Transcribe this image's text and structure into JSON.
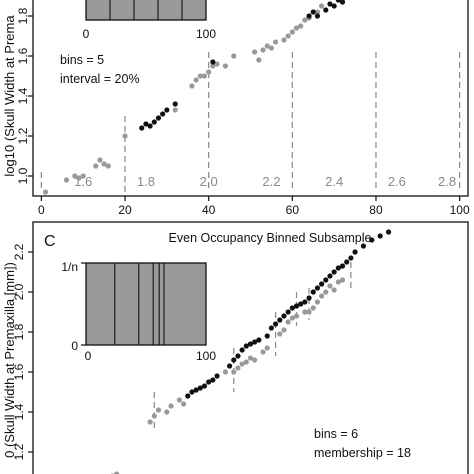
{
  "chart_data": [
    {
      "panel": "top",
      "type": "scatter",
      "title": "",
      "ylabel": "log10 (Skull Width at Prema",
      "xlim": [
        -2,
        102
      ],
      "ylim": [
        0.9,
        1.9
      ],
      "xticks": [
        "0",
        "20",
        "40",
        "60",
        "80",
        "100"
      ],
      "yticks": [
        "1.0",
        "1.2",
        "1.4",
        "1.6",
        "1.8"
      ],
      "grid": false,
      "bin_boundaries_x": [
        0,
        20,
        40,
        60,
        80,
        100
      ],
      "bin_labels": [
        {
          "x": 10,
          "label": "1.6"
        },
        {
          "x": 25,
          "label": "1.8"
        },
        {
          "x": 40,
          "label": "2.0"
        },
        {
          "x": 55,
          "label": "2.2"
        },
        {
          "x": 70,
          "label": "2.4"
        },
        {
          "x": 85,
          "label": "2.6"
        },
        {
          "x": 97,
          "label": "2.8"
        }
      ],
      "annotations": [
        "bins = 5",
        "interval = 20%"
      ],
      "inset": {
        "xticks": [
          "0",
          "100"
        ],
        "dividers": [
          20,
          40,
          60,
          80
        ]
      },
      "series": [
        {
          "color": "#999999",
          "points": [
            [
              1,
              0.92
            ],
            [
              6,
              0.98
            ],
            [
              8,
              1.0
            ],
            [
              9,
              0.99
            ],
            [
              10,
              1.0
            ],
            [
              13,
              1.05
            ],
            [
              14,
              1.08
            ],
            [
              15,
              1.06
            ],
            [
              16,
              1.05
            ],
            [
              20,
              1.2
            ],
            [
              32,
              1.33
            ],
            [
              36,
              1.45
            ],
            [
              37,
              1.48
            ],
            [
              38,
              1.5
            ],
            [
              39,
              1.5
            ],
            [
              40,
              1.52
            ],
            [
              41,
              1.55
            ],
            [
              42,
              1.56
            ],
            [
              44,
              1.55
            ],
            [
              46,
              1.6
            ],
            [
              51,
              1.62
            ],
            [
              52,
              1.58
            ],
            [
              53,
              1.63
            ],
            [
              54,
              1.65
            ],
            [
              55,
              1.64
            ],
            [
              56,
              1.67
            ],
            [
              58,
              1.68
            ],
            [
              59,
              1.7
            ],
            [
              60,
              1.72
            ],
            [
              61,
              1.74
            ],
            [
              62,
              1.75
            ],
            [
              63,
              1.78
            ],
            [
              64,
              1.79
            ],
            [
              66,
              1.82
            ],
            [
              67,
              1.85
            ]
          ]
        },
        {
          "color": "#111111",
          "points": [
            [
              24,
              1.24
            ],
            [
              25,
              1.26
            ],
            [
              26,
              1.25
            ],
            [
              27,
              1.27
            ],
            [
              28,
              1.29
            ],
            [
              29,
              1.31
            ],
            [
              30,
              1.33
            ],
            [
              32,
              1.36
            ],
            [
              41,
              1.57
            ],
            [
              64,
              1.8
            ],
            [
              65,
              1.82
            ],
            [
              66,
              1.8
            ],
            [
              68,
              1.83
            ],
            [
              69,
              1.86
            ],
            [
              70,
              1.85
            ],
            [
              71,
              1.88
            ],
            [
              72,
              1.87
            ]
          ]
        }
      ]
    },
    {
      "panel": "bottom",
      "label": "C",
      "type": "scatter",
      "title": "Even Occupancy Binned Subsample",
      "ylabel": "0 (Skull Width at Premaxilla [mm])",
      "ylim": [
        1.05,
        2.35
      ],
      "yticks": [
        "1.2",
        "1.4",
        "1.6",
        "1.8",
        "2.0",
        "2.2"
      ],
      "grid": false,
      "bin_boundaries_x": [
        27,
        46,
        56,
        61,
        64,
        74
      ],
      "annotations": [
        "bins = 6",
        "membership = 18"
      ],
      "inset": {
        "ylabel": "1/n",
        "yticks": [
          "1/n",
          "0"
        ],
        "xticks": [
          "0",
          "100"
        ],
        "dividers": [
          24,
          44,
          56,
          61,
          65
        ]
      },
      "series": [
        {
          "color": "#999999",
          "points": [
            [
              17,
              1.08
            ],
            [
              18,
              1.09
            ],
            [
              26,
              1.35
            ],
            [
              27,
              1.38
            ],
            [
              28,
              1.41
            ],
            [
              30,
              1.4
            ],
            [
              31,
              1.43
            ],
            [
              33,
              1.46
            ],
            [
              34,
              1.44
            ],
            [
              44,
              1.6
            ],
            [
              46,
              1.6
            ],
            [
              47,
              1.62
            ],
            [
              48,
              1.64
            ],
            [
              49,
              1.65
            ],
            [
              50,
              1.67
            ],
            [
              51,
              1.66
            ],
            [
              53,
              1.7
            ],
            [
              54,
              1.72
            ],
            [
              57,
              1.79
            ],
            [
              58,
              1.81
            ],
            [
              59,
              1.85
            ],
            [
              60,
              1.87
            ],
            [
              61,
              1.88
            ],
            [
              63,
              1.9
            ],
            [
              64,
              1.9
            ],
            [
              65,
              1.92
            ],
            [
              66,
              1.95
            ],
            [
              67,
              1.98
            ],
            [
              68,
              2.0
            ],
            [
              69,
              2.03
            ],
            [
              70,
              2.01
            ],
            [
              71,
              2.05
            ],
            [
              72,
              2.06
            ]
          ]
        },
        {
          "color": "#111111",
          "points": [
            [
              35,
              1.48
            ],
            [
              36,
              1.5
            ],
            [
              37,
              1.51
            ],
            [
              38,
              1.52
            ],
            [
              39,
              1.53
            ],
            [
              40,
              1.55
            ],
            [
              41,
              1.56
            ],
            [
              42,
              1.58
            ],
            [
              45,
              1.63
            ],
            [
              46,
              1.66
            ],
            [
              47,
              1.68
            ],
            [
              48,
              1.71
            ],
            [
              49,
              1.73
            ],
            [
              50,
              1.74
            ],
            [
              51,
              1.75
            ],
            [
              52,
              1.76
            ],
            [
              54,
              1.78
            ],
            [
              55,
              1.82
            ],
            [
              56,
              1.84
            ],
            [
              57,
              1.86
            ],
            [
              58,
              1.88
            ],
            [
              59,
              1.9
            ],
            [
              60,
              1.92
            ],
            [
              61,
              1.93
            ],
            [
              62,
              1.94
            ],
            [
              63,
              1.95
            ],
            [
              64,
              1.97
            ],
            [
              65,
              2.0
            ],
            [
              66,
              2.02
            ],
            [
              67,
              2.04
            ],
            [
              68,
              2.06
            ],
            [
              69,
              2.08
            ],
            [
              70,
              2.1
            ],
            [
              71,
              2.12
            ],
            [
              72,
              2.13
            ],
            [
              73,
              2.15
            ],
            [
              74,
              2.17
            ],
            [
              75,
              2.2
            ],
            [
              77,
              2.23
            ],
            [
              79,
              2.26
            ],
            [
              81,
              2.28
            ],
            [
              83,
              2.3
            ]
          ]
        }
      ]
    }
  ]
}
